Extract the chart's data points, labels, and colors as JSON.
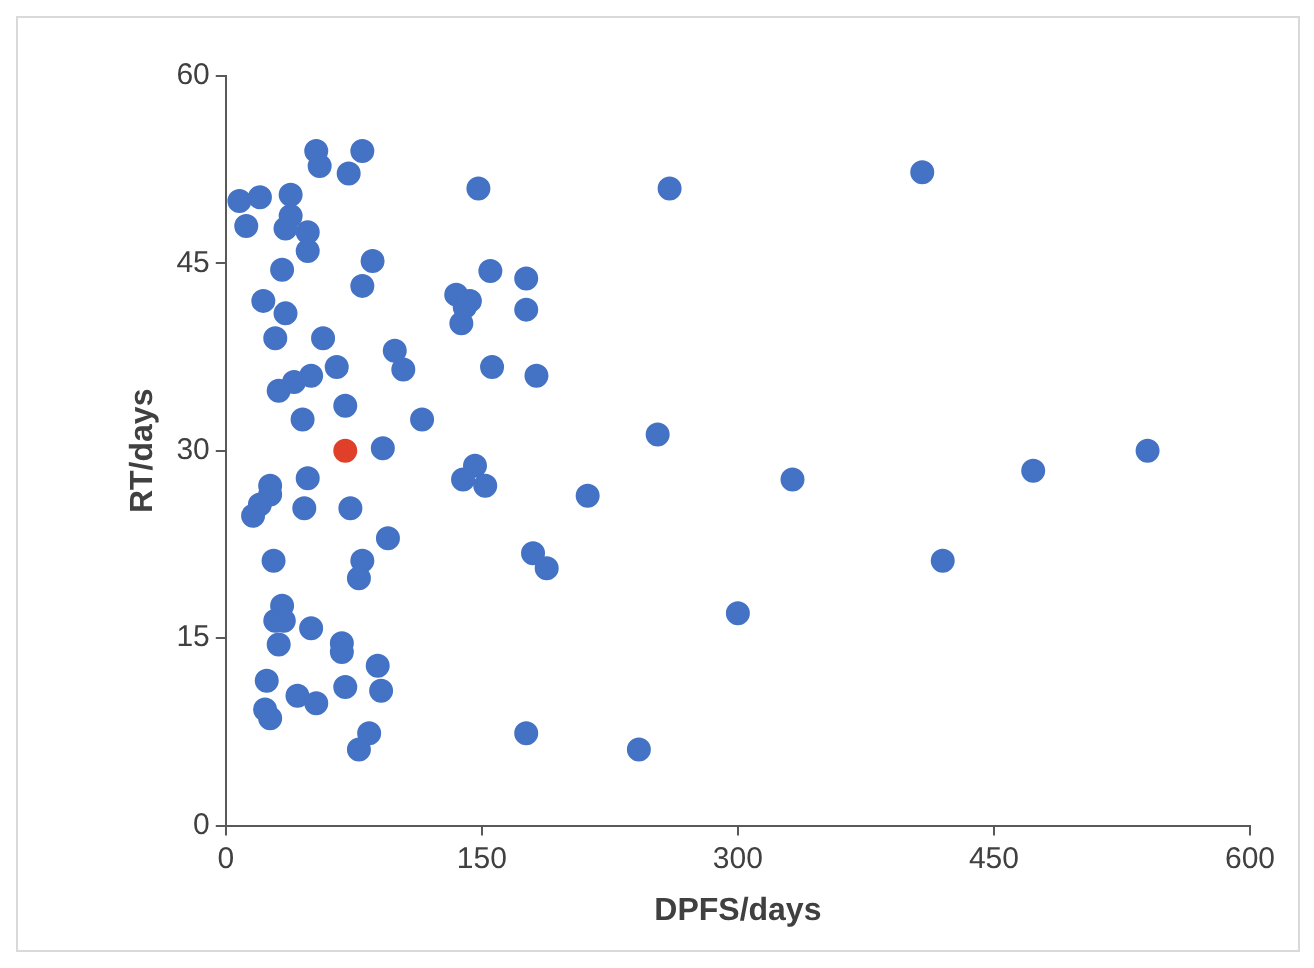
{
  "chart_data": {
    "type": "scatter",
    "xlabel": "DPFS/days",
    "ylabel": "RT/days",
    "xlim": [
      0,
      600
    ],
    "ylim": [
      0,
      60
    ],
    "xticks": [
      0,
      150,
      300,
      450,
      600
    ],
    "yticks": [
      0,
      15,
      30,
      45,
      60
    ],
    "grid": false,
    "legend": false,
    "marker": "circle",
    "series": [
      {
        "color": "#4472c4",
        "x": [
          8,
          12,
          20,
          38,
          38,
          35,
          48,
          48,
          53,
          55,
          72,
          80,
          148,
          260,
          408,
          22,
          33,
          35,
          29,
          57,
          86,
          80,
          135,
          138,
          140,
          143,
          155,
          176,
          176,
          65,
          99,
          104,
          31,
          40,
          50,
          45,
          70,
          115,
          156,
          182,
          253,
          92,
          146,
          139,
          152,
          332,
          473,
          540,
          212,
          48,
          26,
          26,
          20,
          16,
          46,
          73,
          95,
          28,
          80,
          78,
          180,
          188,
          420,
          300,
          33,
          29,
          34,
          31,
          50,
          68,
          68,
          89,
          24,
          42,
          53,
          70,
          91,
          23,
          26,
          84,
          78,
          176,
          242
        ],
        "values": [
          50,
          48,
          50.3,
          50.5,
          48.8,
          47.8,
          47.5,
          46,
          54,
          52.8,
          52.2,
          54,
          51,
          51,
          52.3,
          42,
          44.5,
          41,
          39,
          39,
          45.2,
          43.2,
          42.5,
          40.2,
          41.5,
          42,
          44.4,
          43.8,
          41.3,
          36.7,
          38,
          36.5,
          34.8,
          35.5,
          36,
          32.5,
          33.6,
          32.5,
          36.7,
          36,
          31.3,
          30.2,
          28.8,
          27.7,
          27.2,
          27.7,
          28.4,
          30,
          26.4,
          27.8,
          27.2,
          26.5,
          25.7,
          24.8,
          25.4,
          25.4,
          23,
          21.2,
          21.2,
          19.8,
          21.8,
          20.6,
          21.2,
          17,
          17.6,
          16.4,
          16.4,
          14.5,
          15.8,
          14.6,
          13.9,
          12.8,
          11.6,
          10.4,
          9.8,
          11.1,
          10.8,
          9.3,
          8.6,
          7.4,
          6.1,
          7.4,
          6.1
        ]
      },
      {
        "color": "#e0402a",
        "x": [
          70
        ],
        "values": [
          30
        ]
      }
    ]
  }
}
